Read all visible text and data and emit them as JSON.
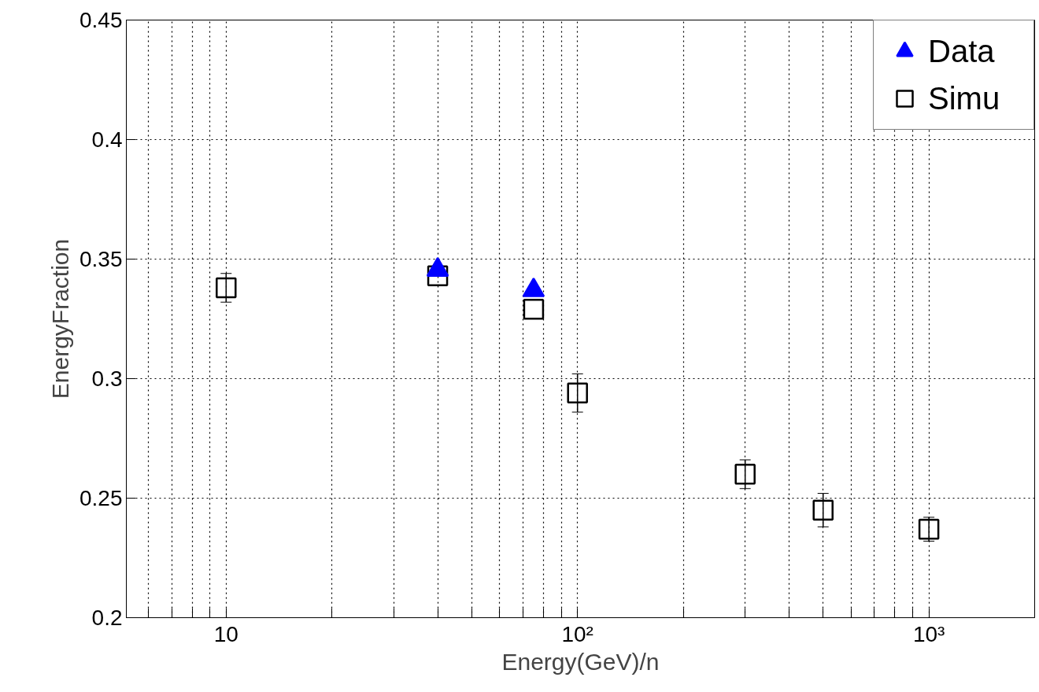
{
  "chart_data": {
    "type": "scatter",
    "xlabel": "Energy(GeV)/n",
    "ylabel": "EnergyFraction",
    "log": "x",
    "xlim": [
      5.2,
      2000
    ],
    "ylim": [
      0.2,
      0.45
    ],
    "xticks": [
      {
        "value": 6,
        "label": null
      },
      {
        "value": 7,
        "label": null
      },
      {
        "value": 8,
        "label": null
      },
      {
        "value": 9,
        "label": null
      },
      10,
      {
        "value": 20,
        "label": null
      },
      {
        "value": 30,
        "label": null
      },
      {
        "value": 40,
        "label": null
      },
      {
        "value": 50,
        "label": null
      },
      {
        "value": 60,
        "label": null
      },
      {
        "value": 70,
        "label": null
      },
      {
        "value": 80,
        "label": null
      },
      {
        "value": 90,
        "label": null
      },
      {
        "value": 100,
        "label": "10²"
      },
      {
        "value": 200,
        "label": null
      },
      {
        "value": 300,
        "label": null
      },
      {
        "value": 400,
        "label": null
      },
      {
        "value": 500,
        "label": null
      },
      {
        "value": 600,
        "label": null
      },
      {
        "value": 700,
        "label": null
      },
      {
        "value": 800,
        "label": null
      },
      {
        "value": 900,
        "label": null
      },
      {
        "value": 1000,
        "label": "10³"
      }
    ],
    "yticks": [
      0.2,
      0.25,
      0.3,
      0.35,
      0.4,
      0.45
    ],
    "grid": true,
    "legend": "top right",
    "series": [
      {
        "name": "Data",
        "color": "#0000ff",
        "marker": "triangle",
        "x": [
          40,
          75
        ],
        "values": [
          0.3455,
          0.337
        ]
      },
      {
        "name": "Simu",
        "color": "#000000",
        "marker": "square",
        "x": [
          10,
          40,
          75,
          100,
          300,
          500,
          1000
        ],
        "values": [
          0.338,
          0.343,
          0.329,
          0.294,
          0.26,
          0.245,
          0.237
        ],
        "errors": [
          0.006,
          null,
          null,
          0.008,
          0.006,
          0.007,
          0.005
        ]
      }
    ]
  }
}
